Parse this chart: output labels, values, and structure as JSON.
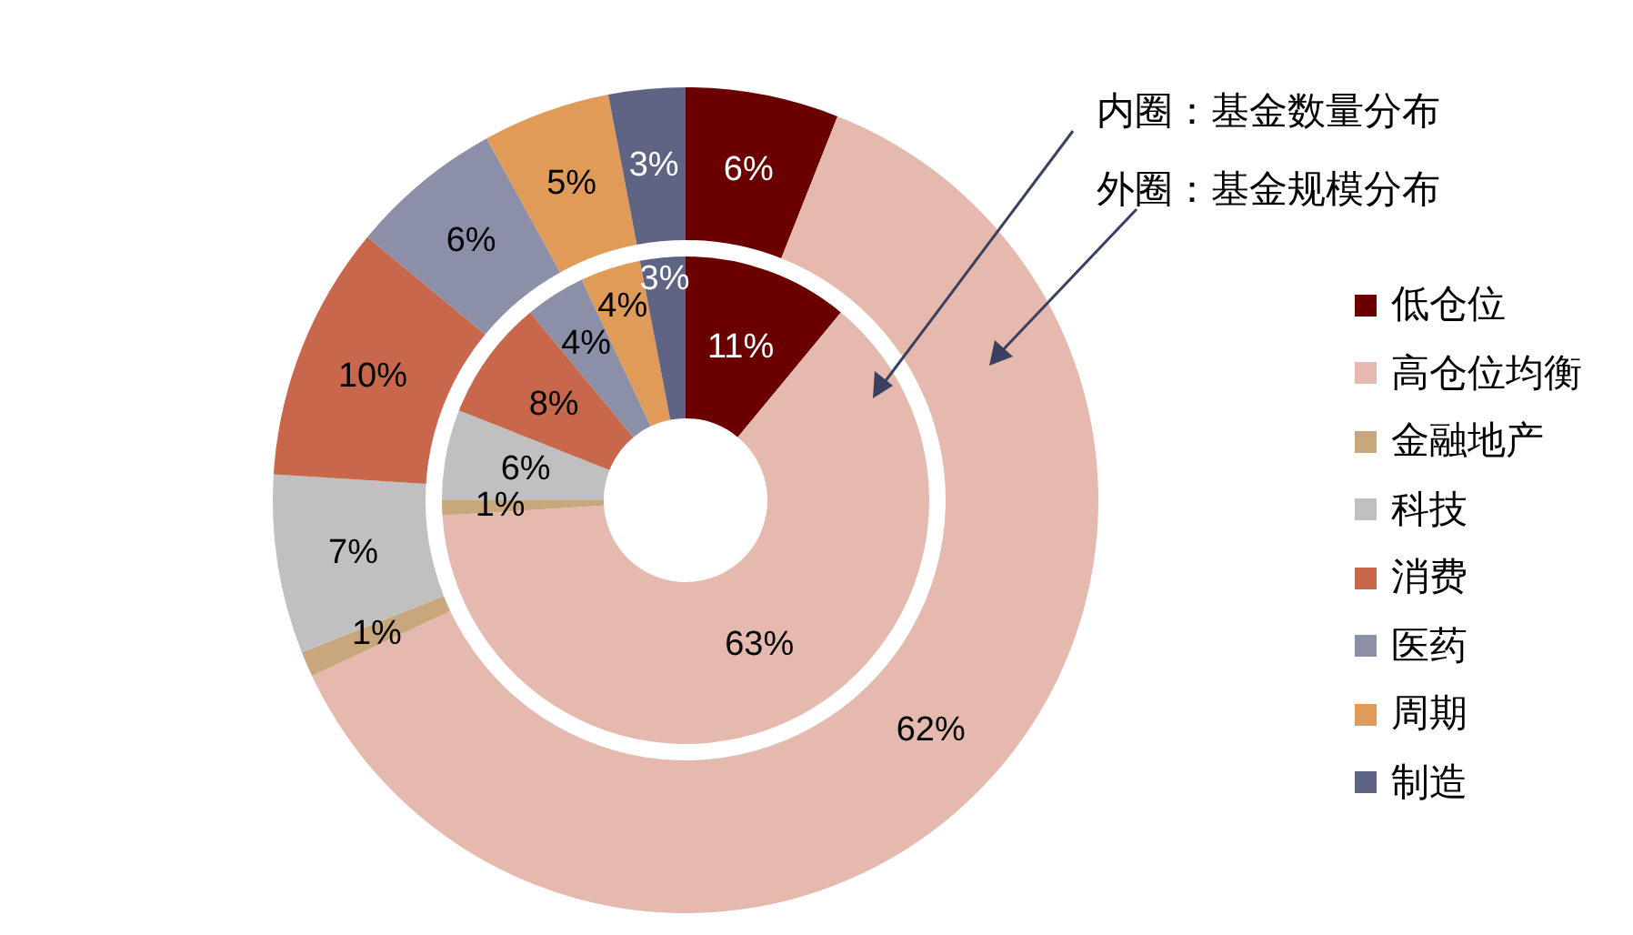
{
  "chart_data": {
    "type": "donut",
    "categories": [
      "低仓位",
      "高仓位均衡",
      "金融地产",
      "科技",
      "消费",
      "医药",
      "周期",
      "制造"
    ],
    "colors": [
      "#6b0000",
      "#e5b9ad",
      "#c9a77c",
      "#c0c0c0",
      "#c8674b",
      "#8b8fa8",
      "#e09b59",
      "#5f6485"
    ],
    "series": [
      {
        "values": [
          11,
          63,
          1,
          6,
          8,
          4,
          4,
          3
        ],
        "value_labels": [
          "11%",
          "63%",
          "1%",
          "6%",
          "8%",
          "4%",
          "4%",
          "3%"
        ]
      },
      {
        "values": [
          6,
          62,
          1,
          7,
          10,
          6,
          5,
          3
        ],
        "value_labels": [
          "6%",
          "62%",
          "1%",
          "7%",
          "10%",
          "6%",
          "5%",
          "3%"
        ]
      }
    ],
    "legend": "right",
    "annotations": [
      "内圈：基金数量分布",
      "外圈：基金规模分布"
    ]
  }
}
